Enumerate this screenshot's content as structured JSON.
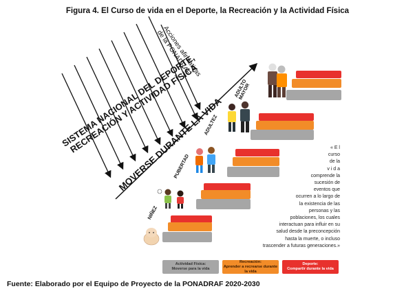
{
  "figure": {
    "title": "Figura 4. El Curso de vida en el Deporte, la Recreación y la Actividad Física",
    "source": "Fuente: Elaborado por el Equipo de Proyecto de la PONADRAF 2020-2030"
  },
  "diagram": {
    "system_label": [
      "SISTEMA NACIONAL DEL DEPORTE,",
      "RECREACIÓN Y ACTIVIDAD FÍSICA"
    ],
    "actions_label": [
      "Acciones afirmativas",
      "de la PONADRAF"
    ],
    "axis_label": "MOVERSE DURANTE LA VIDA",
    "stages": [
      {
        "lines": [
          "NIÑEZ"
        ],
        "figure": "baby"
      },
      {
        "lines": [
          "PUBERTAD"
        ],
        "figure": "children"
      },
      {
        "lines": [
          "ADULTEZ"
        ],
        "figure": "adolescents"
      },
      {
        "lines": [
          "ADULTO",
          "MAYOR"
        ],
        "figure": "adults"
      },
      {
        "lines": [],
        "figure": "elders"
      }
    ],
    "quote_lines": [
      "« E l",
      "curso",
      "de       la",
      "v i d a",
      "comprende la",
      "sucesión    de",
      "eventos     que",
      "ocurren a lo largo de",
      "la   existencia  de  las",
      "personas    y    las",
      "poblaciones,  los  cuales",
      "interactuan para influir en su",
      "salud desde la preconcepción",
      "hasta  la  muerte,  o  incluso",
      "trascender a futuras generaciones.»"
    ]
  },
  "legend": [
    {
      "title": "Actividad Física:",
      "subtitle": "Moverse para la vida",
      "color": "#a6a6a6"
    },
    {
      "title": "Recreación:",
      "subtitle": "Aprender a recrearse durante la vida",
      "color": "#f28c28"
    },
    {
      "title": "Deporte:",
      "subtitle": "Compartir durante la vida",
      "color": "#e8312d"
    }
  ]
}
